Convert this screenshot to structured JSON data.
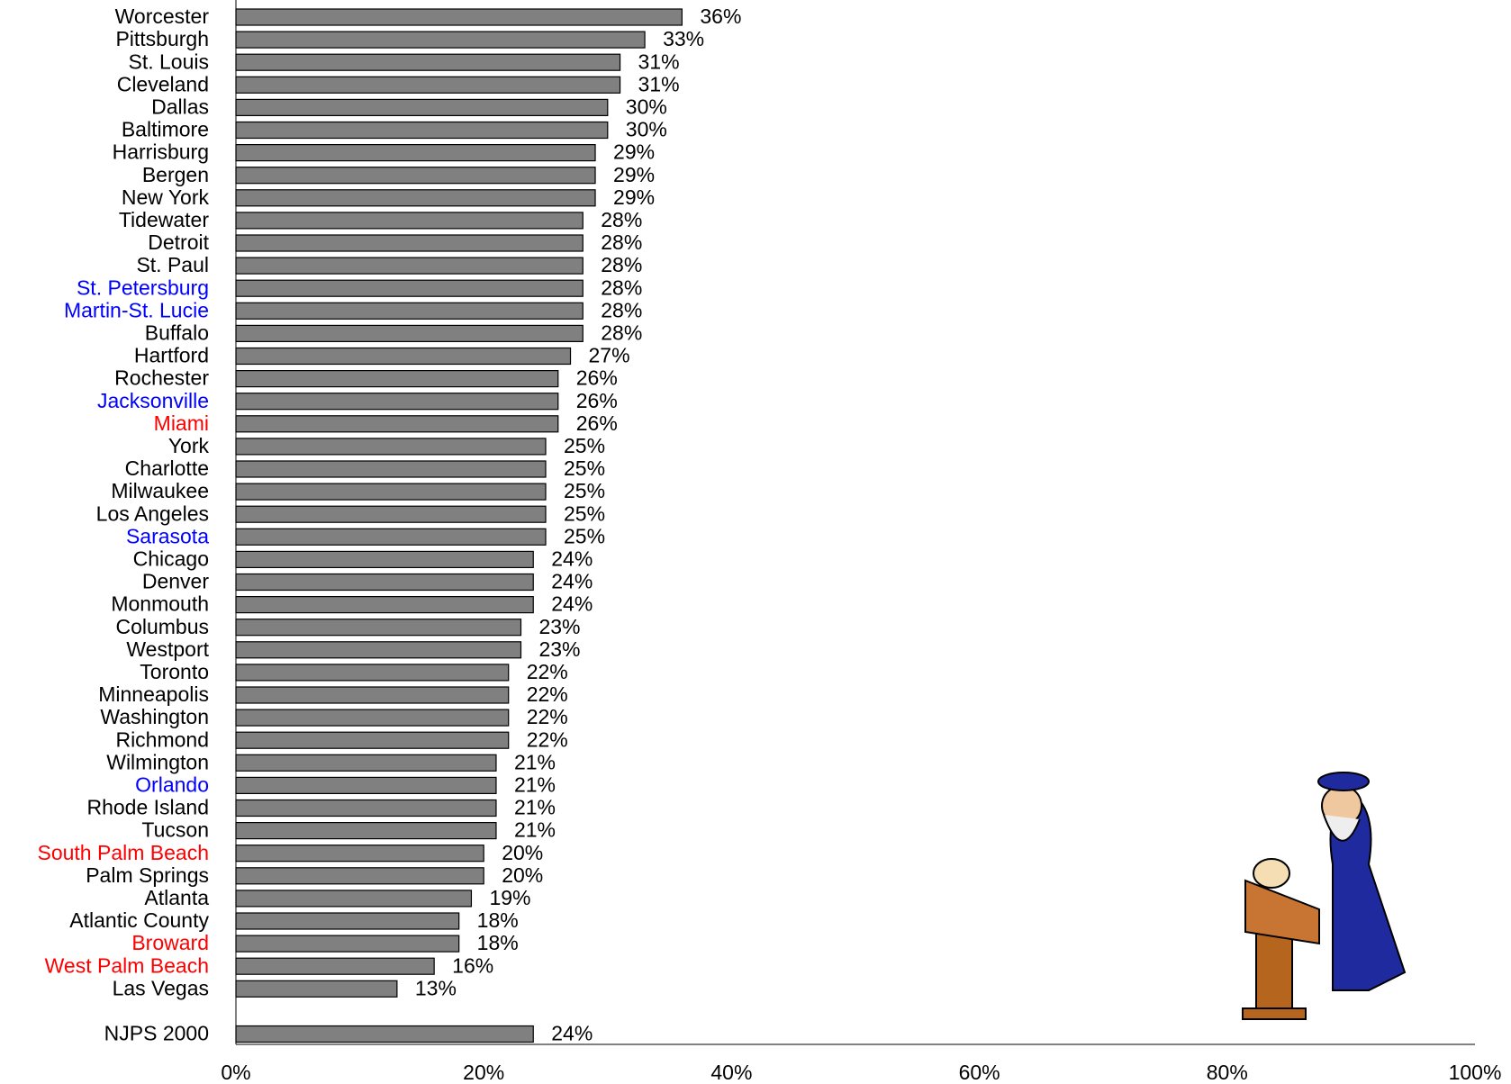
{
  "chart_data": {
    "type": "hbar",
    "categories": [
      "Worcester",
      "Pittsburgh",
      "St. Louis",
      "Cleveland",
      "Dallas",
      "Baltimore",
      "Harrisburg",
      "Bergen",
      "New York",
      "Tidewater",
      "Detroit",
      "St. Paul",
      "St. Petersburg",
      "Martin-St. Lucie",
      "Buffalo",
      "Hartford",
      "Rochester",
      "Jacksonville",
      "Miami",
      "York",
      "Charlotte",
      "Milwaukee",
      "Los Angeles",
      "Sarasota",
      "Chicago",
      "Denver",
      "Monmouth",
      "Columbus",
      "Westport",
      "Toronto",
      "Minneapolis",
      "Washington",
      "Richmond",
      "Wilmington",
      "Orlando",
      "Rhode Island",
      "Tucson",
      "South Palm Beach",
      "Palm Springs",
      "Atlanta",
      "Atlantic County",
      "Broward",
      "West Palm Beach",
      "Las Vegas",
      null,
      "NJPS 2000"
    ],
    "label_colors": [
      "#000000",
      "#000000",
      "#000000",
      "#000000",
      "#000000",
      "#000000",
      "#000000",
      "#000000",
      "#000000",
      "#000000",
      "#000000",
      "#000000",
      "#0000ff",
      "#0000ff",
      "#000000",
      "#000000",
      "#000000",
      "#0000ff",
      "#ff0000",
      "#000000",
      "#000000",
      "#000000",
      "#000000",
      "#0000ff",
      "#000000",
      "#000000",
      "#000000",
      "#000000",
      "#000000",
      "#000000",
      "#000000",
      "#000000",
      "#000000",
      "#000000",
      "#0000ff",
      "#000000",
      "#000000",
      "#ff0000",
      "#000000",
      "#000000",
      "#000000",
      "#ff0000",
      "#ff0000",
      "#000000",
      null,
      "#000000"
    ],
    "values": [
      36,
      33,
      31,
      31,
      30,
      30,
      29,
      29,
      29,
      28,
      28,
      28,
      28,
      28,
      28,
      27,
      26,
      26,
      26,
      25,
      25,
      25,
      25,
      25,
      24,
      24,
      24,
      23,
      23,
      22,
      22,
      22,
      22,
      21,
      21,
      21,
      21,
      20,
      20,
      19,
      18,
      18,
      16,
      13,
      null,
      24
    ],
    "value_labels": [
      "36%",
      "33%",
      "31%",
      "31%",
      "30%",
      "30%",
      "29%",
      "29%",
      "29%",
      "28%",
      "28%",
      "28%",
      "28%",
      "28%",
      "28%",
      "27%",
      "26%",
      "26%",
      "26%",
      "25%",
      "25%",
      "25%",
      "25%",
      "25%",
      "24%",
      "24%",
      "24%",
      "23%",
      "23%",
      "22%",
      "22%",
      "22%",
      "22%",
      "21%",
      "21%",
      "21%",
      "21%",
      "20%",
      "20%",
      "19%",
      "18%",
      "18%",
      "16%",
      "13%",
      null,
      "24%"
    ],
    "color": "#808080",
    "xlim": [
      0,
      100
    ],
    "xticks": [
      {
        "value": 0,
        "label": "0%"
      },
      {
        "value": 20,
        "label": "20%"
      },
      {
        "value": 40,
        "label": "40%"
      },
      {
        "value": 60,
        "label": "60%"
      },
      {
        "value": 80,
        "label": "80%"
      },
      {
        "value": 100,
        "label": "100%"
      }
    ]
  }
}
